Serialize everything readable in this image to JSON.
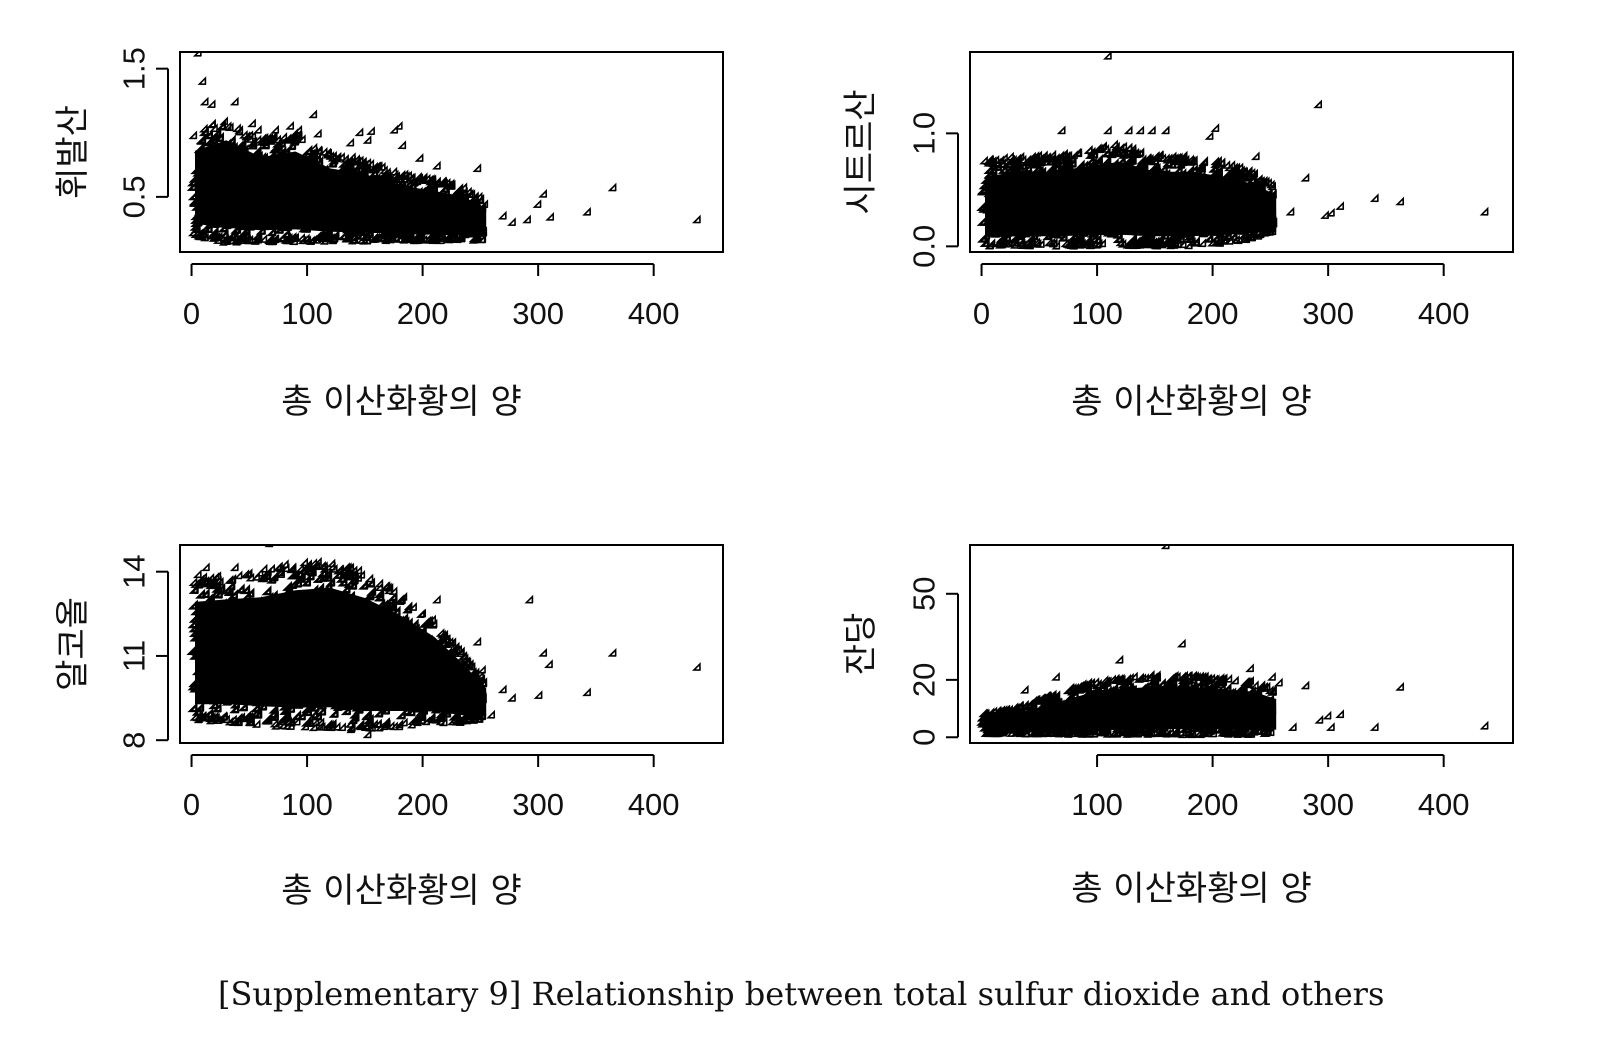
{
  "figure_caption": "[Supplementary 9] Relationship between total sulfur dioxide and others",
  "colors": {
    "points": "#000000",
    "axes": "#000000",
    "background": "#ffffff"
  },
  "chart_data": [
    {
      "type": "scatter",
      "xlabel": "총 이산화황의 양",
      "ylabel": "휘발산",
      "xlim": [
        -10,
        460
      ],
      "ylim": [
        0.07,
        1.63
      ],
      "xticks": [
        0,
        100,
        200,
        300,
        400
      ],
      "yticks": [
        0.5,
        1.5
      ],
      "ytick_labels": [
        "0.5",
        "1.5"
      ],
      "dense_region": [
        [
          3,
          0.2,
          0.95
        ],
        [
          30,
          0.15,
          1.05
        ],
        [
          60,
          0.15,
          0.9
        ],
        [
          90,
          0.15,
          0.95
        ],
        [
          120,
          0.15,
          0.8
        ],
        [
          150,
          0.15,
          0.75
        ],
        [
          180,
          0.15,
          0.65
        ],
        [
          210,
          0.15,
          0.6
        ],
        [
          235,
          0.15,
          0.55
        ],
        [
          255,
          0.15,
          0.45
        ]
      ],
      "points": [
        [
          8,
          1.6
        ],
        [
          12,
          1.38
        ],
        [
          14,
          1.22
        ],
        [
          20,
          1.2
        ],
        [
          40,
          1.22
        ],
        [
          55,
          1.05
        ],
        [
          60,
          1.0
        ],
        [
          75,
          1.0
        ],
        [
          88,
          1.03
        ],
        [
          95,
          1.0
        ],
        [
          108,
          1.12
        ],
        [
          112,
          0.97
        ],
        [
          140,
          0.9
        ],
        [
          148,
          0.98
        ],
        [
          155,
          0.92
        ],
        [
          158,
          0.99
        ],
        [
          178,
          1.0
        ],
        [
          182,
          1.03
        ],
        [
          185,
          0.88
        ],
        [
          200,
          0.78
        ],
        [
          215,
          0.72
        ],
        [
          250,
          0.7
        ],
        [
          256,
          0.42
        ],
        [
          272,
          0.33
        ],
        [
          280,
          0.28
        ],
        [
          293,
          0.3
        ],
        [
          302,
          0.42
        ],
        [
          307,
          0.5
        ],
        [
          313,
          0.32
        ],
        [
          345,
          0.36
        ],
        [
          367,
          0.55
        ],
        [
          440,
          0.3
        ]
      ]
    },
    {
      "type": "scatter",
      "xlabel": "총 이산화황의 양",
      "ylabel": "시트르산",
      "xlim": [
        -10,
        460
      ],
      "ylim": [
        -0.05,
        1.72
      ],
      "xticks": [
        0,
        100,
        200,
        300,
        400
      ],
      "yticks": [
        0.0,
        1.0
      ],
      "ytick_labels": [
        "0.0",
        "1.0"
      ],
      "dense_region": [
        [
          3,
          0.0,
          0.7
        ],
        [
          30,
          0.0,
          0.75
        ],
        [
          60,
          0.0,
          0.75
        ],
        [
          90,
          0.0,
          0.8
        ],
        [
          120,
          0.0,
          0.85
        ],
        [
          150,
          0.0,
          0.75
        ],
        [
          180,
          0.0,
          0.75
        ],
        [
          210,
          0.02,
          0.7
        ],
        [
          235,
          0.05,
          0.62
        ],
        [
          255,
          0.12,
          0.5
        ]
      ],
      "points": [
        [
          112,
          1.66
        ],
        [
          72,
          1.0
        ],
        [
          112,
          1.0
        ],
        [
          130,
          1.0
        ],
        [
          140,
          1.0
        ],
        [
          150,
          1.0
        ],
        [
          162,
          1.0
        ],
        [
          200,
          0.95
        ],
        [
          205,
          1.02
        ],
        [
          240,
          0.77
        ],
        [
          270,
          0.28
        ],
        [
          283,
          0.58
        ],
        [
          294,
          1.23
        ],
        [
          300,
          0.25
        ],
        [
          305,
          0.27
        ],
        [
          313,
          0.33
        ],
        [
          343,
          0.4
        ],
        [
          365,
          0.37
        ],
        [
          438,
          0.28
        ]
      ]
    },
    {
      "type": "scatter",
      "xlabel": "총 이산화황의 양",
      "ylabel": "알코올",
      "xlim": [
        -10,
        460
      ],
      "ylim": [
        7.9,
        14.95
      ],
      "xticks": [
        0,
        100,
        200,
        300,
        400
      ],
      "yticks": [
        8,
        11,
        14
      ],
      "ytick_labels": [
        "8",
        "11",
        "14"
      ],
      "dense_region": [
        [
          3,
          8.7,
          13.5
        ],
        [
          30,
          8.7,
          13.6
        ],
        [
          60,
          8.6,
          13.7
        ],
        [
          90,
          8.5,
          14.0
        ],
        [
          120,
          8.5,
          14.1
        ],
        [
          150,
          8.4,
          13.7
        ],
        [
          180,
          8.5,
          13.0
        ],
        [
          210,
          8.6,
          12.1
        ],
        [
          235,
          8.6,
          11.0
        ],
        [
          255,
          8.7,
          10.0
        ]
      ],
      "points": [
        [
          70,
          14.9
        ],
        [
          8,
          13.8
        ],
        [
          15,
          14.05
        ],
        [
          40,
          14.05
        ],
        [
          65,
          14.0
        ],
        [
          90,
          14.05
        ],
        [
          108,
          14.2
        ],
        [
          140,
          14.0
        ],
        [
          155,
          8.1
        ],
        [
          215,
          12.9
        ],
        [
          250,
          11.4
        ],
        [
          254,
          10.4
        ],
        [
          262,
          8.8
        ],
        [
          272,
          9.7
        ],
        [
          280,
          9.4
        ],
        [
          295,
          12.9
        ],
        [
          303,
          9.5
        ],
        [
          307,
          11.0
        ],
        [
          312,
          10.6
        ],
        [
          345,
          9.6
        ],
        [
          367,
          11.0
        ],
        [
          440,
          10.5
        ]
      ]
    },
    {
      "type": "scatter",
      "xlabel": "총 이산화황의 양",
      "ylabel": "잔당",
      "xlim": [
        -10,
        460
      ],
      "ylim": [
        -2,
        67
      ],
      "xticks": [
        100,
        200,
        300,
        400
      ],
      "yticks": [
        0,
        20,
        50
      ],
      "ytick_labels": [
        "0",
        "20",
        "50"
      ],
      "dense_region": [
        [
          3,
          0.5,
          7
        ],
        [
          30,
          0.5,
          9
        ],
        [
          60,
          0.5,
          13
        ],
        [
          90,
          0.5,
          17
        ],
        [
          120,
          0.5,
          19
        ],
        [
          150,
          0.5,
          20
        ],
        [
          180,
          0.5,
          20
        ],
        [
          210,
          0.5,
          19
        ],
        [
          235,
          0.5,
          18
        ],
        [
          255,
          1.0,
          15
        ]
      ],
      "points": [
        [
          162,
          65.8
        ],
        [
          176,
          31.6
        ],
        [
          122,
          26
        ],
        [
          67,
          20
        ],
        [
          40,
          15.5
        ],
        [
          235,
          23
        ],
        [
          254,
          20
        ],
        [
          260,
          18
        ],
        [
          272,
          2.5
        ],
        [
          283,
          17
        ],
        [
          295,
          5
        ],
        [
          302,
          6.5
        ],
        [
          305,
          2.5
        ],
        [
          313,
          7
        ],
        [
          343,
          2.5
        ],
        [
          365,
          16.5
        ],
        [
          438,
          3
        ]
      ]
    }
  ]
}
